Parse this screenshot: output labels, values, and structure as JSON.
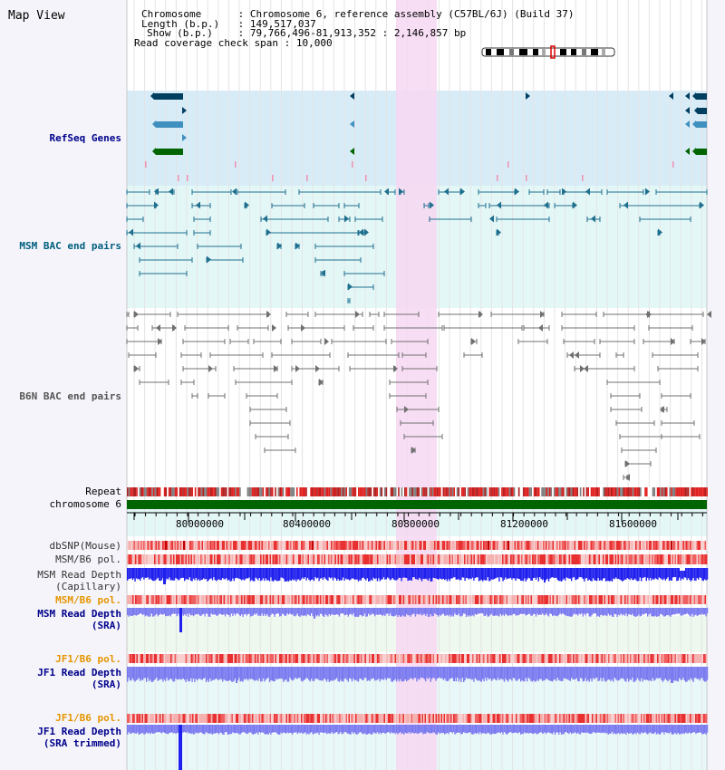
{
  "title": "Map View",
  "info": {
    "chromosome_key": "Chromosome",
    "chromosome_val": "Chromosome 6, reference assembly (C57BL/6J) (Build 37)",
    "length_key": "Length (b.p.)",
    "length_val": "149,517,037",
    "show_key": "Show (b.p.)",
    "show_val": "79,766,496-81,913,352 : 2,146,857 bp",
    "span_key": "Read coverage check span",
    "span_val": "10,000"
  },
  "tracks": {
    "refseq": "RefSeq Genes",
    "msm_bac": "MSM BAC end pairs",
    "b6n_bac": "B6N BAC end pairs",
    "repeat": "Repeat",
    "chromosome": "chromosome 6",
    "dbsnp": "dbSNP(Mouse)",
    "msm_b6_pol_1": "MSM/B6 pol.",
    "msm_depth_cap_1": "MSM Read Depth",
    "msm_depth_cap_2": "(Capillary)",
    "msm_b6_pol_2": "MSM/B6 pol.",
    "msm_depth_sra_1": "MSM Read Depth",
    "msm_depth_sra_2": "(SRA)",
    "jf1_b6_pol_1": "JF1/B6 pol.",
    "jf1_depth_sra_1": "JF1 Read Depth",
    "jf1_depth_sra_2": "(SRA)",
    "jf1_b6_pol_2": "JF1/B6 pol.",
    "jf1_depth_trim_1": "JF1 Read Depth",
    "jf1_depth_trim_2": "(SRA trimmed)"
  },
  "axis": {
    "ticks": [
      "80000000",
      "80400000",
      "80800000",
      "81200000",
      "81600000"
    ]
  },
  "colors": {
    "refseq_bg": "#d8ecf8",
    "bac_bg": "#e4f7f7",
    "highlight": "#f7d8f2",
    "refseq_gene_dark": "#003f5f",
    "refseq_gene_mid": "#3f8fbf",
    "refseq_gene_green": "#006400",
    "msm_pair": "#1f6f8f",
    "b6n_pair": "#707070",
    "chromosome_bar": "#006400",
    "repeat_red": "#e02020",
    "depth_blue": "#2020ee",
    "depth_light": "#7b7bf0",
    "pol_red": "#e83030",
    "pol_pink": "#f5b0b0"
  }
}
